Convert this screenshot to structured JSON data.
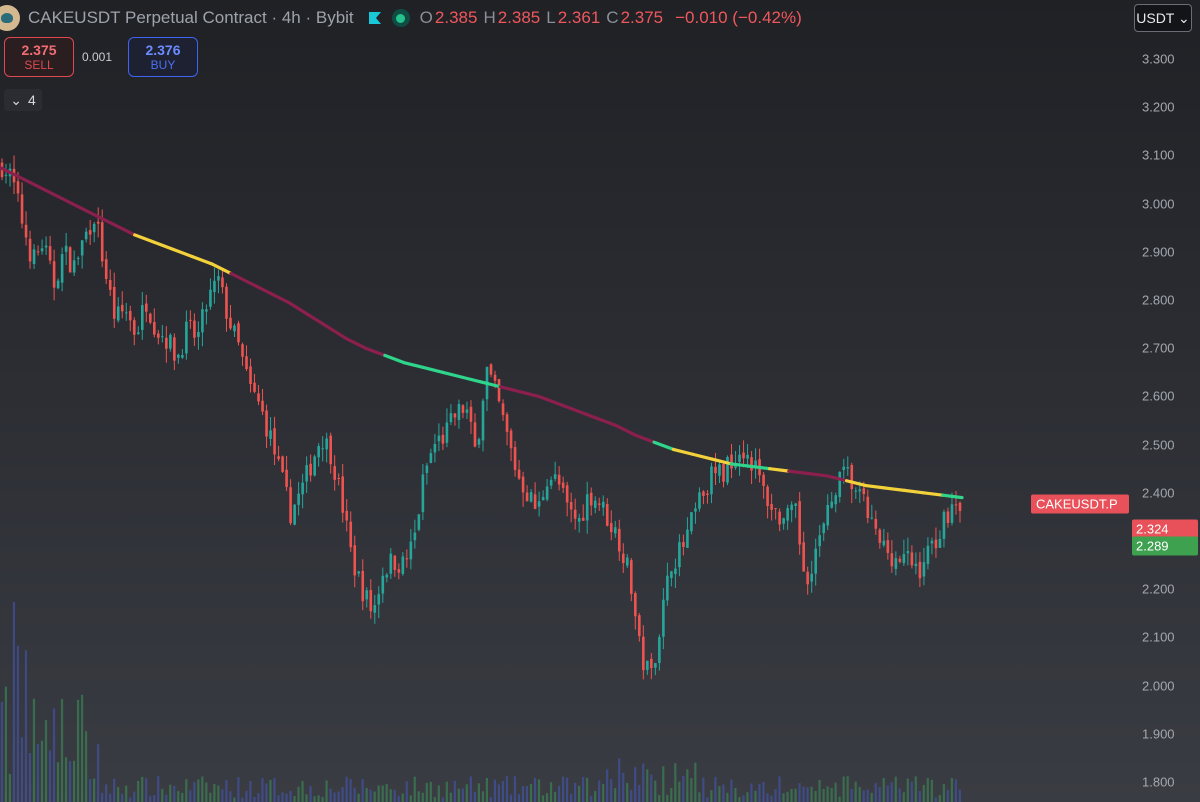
{
  "header": {
    "title": "CAKEUSDT Perpetual Contract · 4h · Bybit",
    "open_key": "O",
    "open": "2.385",
    "high_key": "H",
    "high": "2.385",
    "low_key": "L",
    "low": "2.361",
    "close_key": "C",
    "close": "2.375",
    "change": "−0.010 (−0.42%)"
  },
  "currency": "USDT ⌄",
  "trade": {
    "sell_price": "2.375",
    "sell_label": "SELL",
    "spread": "0.001",
    "buy_price": "2.376",
    "buy_label": "BUY"
  },
  "collapse": {
    "icon": "⌄",
    "count": "4"
  },
  "price_tags": {
    "symbol": "CAKEUSDT.P",
    "red": "2.324",
    "green": "2.289"
  },
  "colors": {
    "up": "#26a69a",
    "down": "#ef5350",
    "ma_bear": "#8b1f4d",
    "ma_neutral": "#f3d13a",
    "ma_bull": "#2ed58a"
  },
  "chart_data": {
    "type": "candlestick",
    "symbol": "CAKEUSDT",
    "timeframe": "4h",
    "y_ticks": [
      "3.300",
      "3.200",
      "3.100",
      "3.000",
      "2.900",
      "2.800",
      "2.700",
      "2.600",
      "2.500",
      "2.400",
      "2.300",
      "2.200",
      "2.100",
      "2.000",
      "1.900",
      "1.800"
    ],
    "ylim": [
      1.775,
      3.31
    ],
    "close_path": [
      3.08,
      3.05,
      2.96,
      2.88,
      2.92,
      2.83,
      2.9,
      2.87,
      2.93,
      2.98,
      2.86,
      2.76,
      2.78,
      2.73,
      2.8,
      2.74,
      2.72,
      2.68,
      2.74,
      2.72,
      2.8,
      2.84,
      2.76,
      2.7,
      2.62,
      2.58,
      2.52,
      2.44,
      2.36,
      2.4,
      2.46,
      2.52,
      2.48,
      2.38,
      2.26,
      2.2,
      2.15,
      2.24,
      2.26,
      2.25,
      2.3,
      2.44,
      2.5,
      2.52,
      2.56,
      2.58,
      2.48,
      2.66,
      2.6,
      2.52,
      2.44,
      2.4,
      2.36,
      2.44,
      2.42,
      2.36,
      2.34,
      2.4,
      2.38,
      2.34,
      2.3,
      2.22,
      2.06,
      2.02,
      2.14,
      2.26,
      2.28,
      2.34,
      2.4,
      2.44,
      2.44,
      2.48,
      2.49,
      2.46,
      2.4,
      2.36,
      2.34,
      2.36,
      2.22,
      2.28,
      2.34,
      2.42,
      2.44,
      2.4,
      2.36,
      2.3,
      2.28,
      2.26,
      2.26,
      2.24,
      2.28,
      2.32,
      2.37,
      2.38
    ],
    "ma_path": [
      3.075,
      3.055,
      3.035,
      3.015,
      2.995,
      2.975,
      2.955,
      2.935,
      2.92,
      2.905,
      2.89,
      2.875,
      2.855,
      2.835,
      2.815,
      2.795,
      2.77,
      2.745,
      2.72,
      2.7,
      2.685,
      2.67,
      2.66,
      2.65,
      2.64,
      2.63,
      2.62,
      2.61,
      2.6,
      2.585,
      2.57,
      2.555,
      2.54,
      2.52,
      2.505,
      2.49,
      2.48,
      2.47,
      2.46,
      2.455,
      2.45,
      2.445,
      2.44,
      2.435,
      2.425,
      2.415,
      2.41,
      2.405,
      2.4,
      2.395,
      2.39
    ],
    "ma_colors": [
      "bear",
      "bear",
      "bear",
      "bear",
      "bear",
      "bear",
      "bear",
      "neutral",
      "neutral",
      "neutral",
      "neutral",
      "neutral",
      "bear",
      "bear",
      "bear",
      "bear",
      "bear",
      "bear",
      "bear",
      "bear",
      "bull",
      "bull",
      "bull",
      "bull",
      "bull",
      "bull",
      "bear",
      "bear",
      "bear",
      "bear",
      "bear",
      "bear",
      "bear",
      "bear",
      "bull",
      "neutral",
      "neutral",
      "neutral",
      "bull",
      "bull",
      "neutral",
      "bear",
      "bear",
      "bear",
      "neutral",
      "neutral",
      "neutral",
      "neutral",
      "neutral",
      "bull",
      "neutral"
    ],
    "volume": "present"
  }
}
